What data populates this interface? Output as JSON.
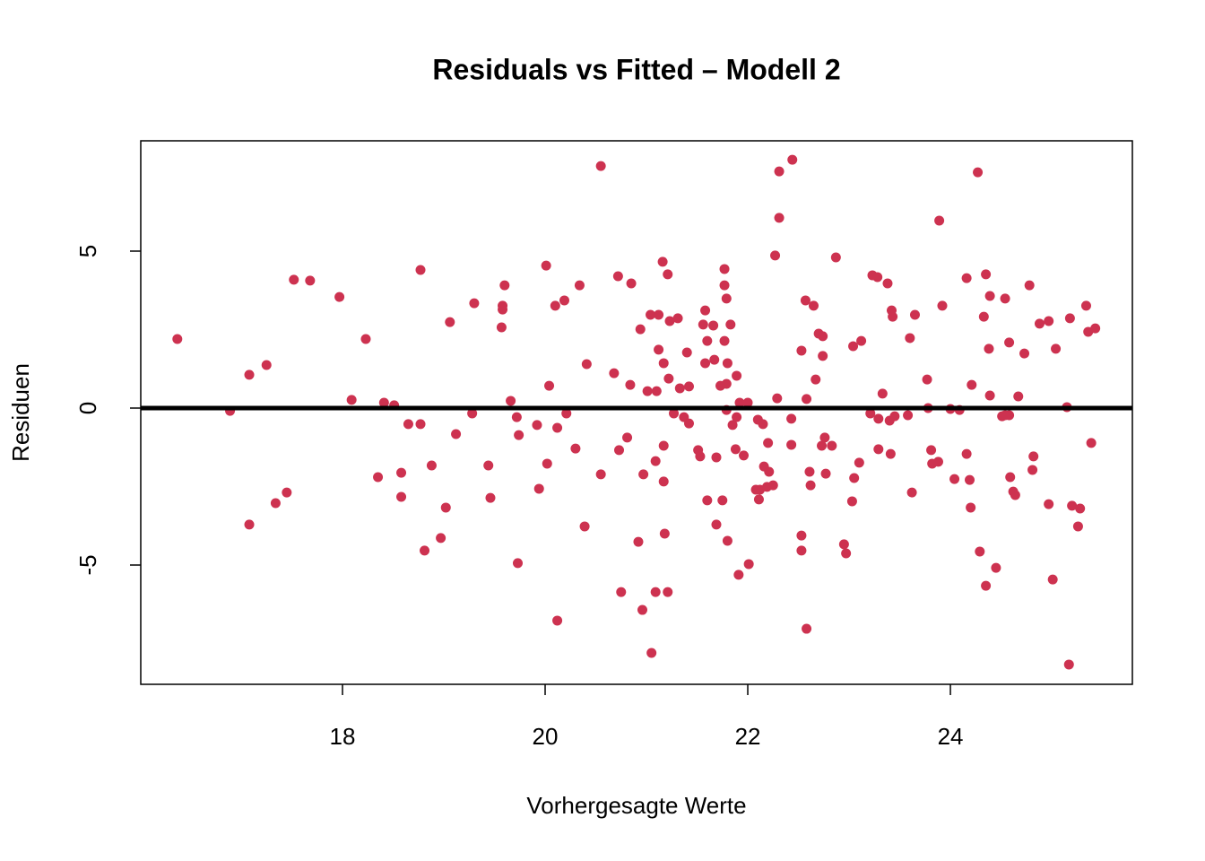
{
  "chart_data": {
    "type": "scatter",
    "title": "Residuals vs Fitted – Modell 2",
    "x_label": "Vorhergesagte Werte",
    "y_label": "Residuen",
    "color": "#cd3250",
    "hline": 0,
    "xlim": [
      16.009,
      25.796
    ],
    "ylim": [
      -8.8,
      8.514
    ],
    "xticks": [
      18,
      20,
      22,
      24
    ],
    "yticks": [
      -5,
      0,
      5
    ],
    "x": [
      16.37,
      16.89,
      17.08,
      17.08,
      17.25,
      17.34,
      17.45,
      17.52,
      17.68,
      17.97,
      18.09,
      18.23,
      18.35,
      18.41,
      18.51,
      18.58,
      18.58,
      18.65,
      18.77,
      18.77,
      18.81,
      18.88,
      18.97,
      19.02,
      19.06,
      19.12,
      19.28,
      19.3,
      19.44,
      19.46,
      19.57,
      19.58,
      19.58,
      19.6,
      19.66,
      19.72,
      19.73,
      19.74,
      19.92,
      19.94,
      20.01,
      20.02,
      20.04,
      20.1,
      20.12,
      20.12,
      20.19,
      20.21,
      20.3,
      20.34,
      20.39,
      20.41,
      20.55,
      20.55,
      20.68,
      20.72,
      20.73,
      20.75,
      20.81,
      20.84,
      20.85,
      20.92,
      20.94,
      20.96,
      20.97,
      21.01,
      21.04,
      21.05,
      21.09,
      21.09,
      21.1,
      21.12,
      21.12,
      21.16,
      21.17,
      21.17,
      21.17,
      21.18,
      21.21,
      21.21,
      21.22,
      21.23,
      21.27,
      21.31,
      21.33,
      21.37,
      21.4,
      21.42,
      21.42,
      21.51,
      21.53,
      21.56,
      21.58,
      21.58,
      21.6,
      21.6,
      21.66,
      21.67,
      21.69,
      21.69,
      21.73,
      21.75,
      21.77,
      21.77,
      21.77,
      21.79,
      21.79,
      21.79,
      21.8,
      21.8,
      21.83,
      21.85,
      21.88,
      21.89,
      21.89,
      21.91,
      21.92,
      21.96,
      22.0,
      22.01,
      22.08,
      22.1,
      22.11,
      22.12,
      22.15,
      22.16,
      22.19,
      22.2,
      22.21,
      22.25,
      22.27,
      22.29,
      22.31,
      22.31,
      22.43,
      22.43,
      22.44,
      22.53,
      22.53,
      22.53,
      22.57,
      22.58,
      22.58,
      22.61,
      22.62,
      22.65,
      22.67,
      22.7,
      22.73,
      22.74,
      22.74,
      22.76,
      22.77,
      22.83,
      22.87,
      22.95,
      22.97,
      23.03,
      23.04,
      23.05,
      23.1,
      23.12,
      23.21,
      23.23,
      23.28,
      23.29,
      23.29,
      23.33,
      23.38,
      23.4,
      23.41,
      23.42,
      23.43,
      23.45,
      23.58,
      23.6,
      23.62,
      23.65,
      23.77,
      23.78,
      23.81,
      23.82,
      23.88,
      23.89,
      23.92,
      24.0,
      24.04,
      24.09,
      24.16,
      24.16,
      24.19,
      24.2,
      24.21,
      24.27,
      24.29,
      24.33,
      24.35,
      24.35,
      24.38,
      24.39,
      24.39,
      24.45,
      24.51,
      24.54,
      24.54,
      24.58,
      24.58,
      24.59,
      24.62,
      24.64,
      24.67,
      24.73,
      24.78,
      24.81,
      24.82,
      24.88,
      24.97,
      24.97,
      25.01,
      25.04,
      25.15,
      25.17,
      25.18,
      25.2,
      25.26,
      25.28,
      25.34,
      25.36,
      25.39,
      25.43
    ],
    "y": [
      2.2,
      -0.09,
      1.06,
      -3.71,
      1.37,
      -3.03,
      -2.69,
      4.09,
      4.06,
      3.54,
      0.26,
      2.2,
      -2.2,
      0.17,
      0.09,
      -2.06,
      -2.83,
      -0.51,
      4.4,
      -0.51,
      -4.54,
      -1.83,
      -4.14,
      -3.17,
      2.74,
      -0.83,
      -0.17,
      3.34,
      -1.83,
      -2.86,
      2.57,
      3.14,
      3.26,
      3.91,
      0.23,
      -0.29,
      -4.94,
      -0.86,
      -0.54,
      -2.57,
      4.54,
      -1.77,
      0.71,
      3.26,
      -6.77,
      -0.63,
      3.43,
      -0.17,
      -1.29,
      3.91,
      -3.77,
      1.4,
      7.71,
      -2.11,
      1.11,
      4.2,
      -1.34,
      -5.86,
      -0.94,
      0.74,
      3.97,
      -4.26,
      2.51,
      -6.43,
      -2.11,
      0.54,
      2.97,
      -7.8,
      -5.86,
      -1.69,
      0.54,
      2.97,
      1.86,
      4.66,
      -2.34,
      -1.2,
      1.43,
      -4.0,
      4.26,
      -5.86,
      0.94,
      2.77,
      -0.17,
      2.86,
      0.63,
      -0.29,
      1.77,
      0.69,
      -0.49,
      -1.34,
      -1.54,
      2.66,
      3.11,
      1.43,
      -2.94,
      2.14,
      2.63,
      1.54,
      -1.57,
      -3.71,
      0.71,
      -2.94,
      2.14,
      3.91,
      4.43,
      0.77,
      3.49,
      -0.06,
      -4.23,
      1.43,
      2.66,
      -0.54,
      -1.31,
      -0.29,
      1.03,
      -5.31,
      0.17,
      -1.51,
      0.17,
      -4.97,
      -2.6,
      -0.37,
      -2.91,
      -2.6,
      -0.51,
      -1.86,
      -2.51,
      -1.11,
      -2.03,
      -2.46,
      4.86,
      0.31,
      7.54,
      6.06,
      -0.34,
      -1.17,
      7.91,
      1.83,
      -4.06,
      -4.54,
      3.43,
      -7.03,
      0.29,
      -2.03,
      -2.46,
      3.26,
      0.91,
      2.37,
      -1.2,
      2.29,
      1.66,
      -0.94,
      -2.09,
      -1.2,
      4.8,
      -4.34,
      -4.63,
      -2.97,
      1.97,
      -2.23,
      -1.74,
      2.14,
      -0.17,
      4.23,
      4.17,
      -0.34,
      -1.31,
      0.46,
      3.97,
      -0.4,
      -1.46,
      3.11,
      2.91,
      -0.26,
      -0.23,
      2.23,
      -2.69,
      2.97,
      0.91,
      0.0,
      -1.34,
      -1.77,
      -1.71,
      5.97,
      3.26,
      -0.03,
      -2.26,
      -0.06,
      4.14,
      -1.46,
      -2.29,
      -3.17,
      0.74,
      7.51,
      -4.57,
      2.91,
      4.26,
      -5.66,
      1.89,
      0.4,
      3.57,
      -5.09,
      -0.26,
      3.49,
      -0.23,
      2.09,
      -0.23,
      -2.2,
      -2.66,
      -2.77,
      0.37,
      1.74,
      3.91,
      -1.97,
      -1.54,
      2.69,
      2.77,
      -3.06,
      -5.46,
      1.89,
      0.03,
      -8.17,
      2.86,
      -3.11,
      -3.77,
      -3.2,
      3.26,
      2.43,
      -1.11,
      2.54
    ]
  }
}
